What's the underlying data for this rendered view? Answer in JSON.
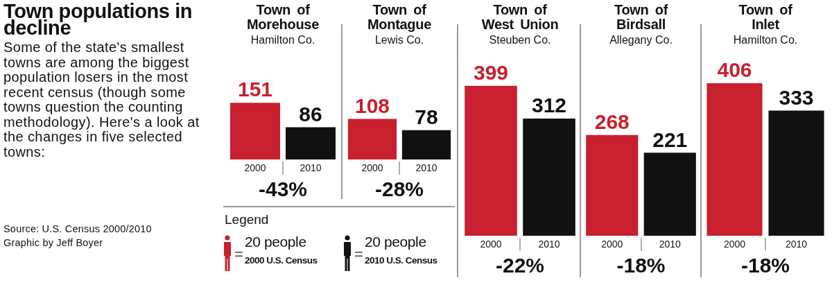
{
  "chart_data": [
    {
      "type": "other",
      "title": "Town populations in decline",
      "subtitle": "Some of the state's smallest towns are among the biggest population losers in the most recent census (though some towns question the counting methodology). Here's a look at the changes in five selected towns:",
      "annotations": [
        "Source: U.S. Census 2000/2010",
        "Graphic by Jeff Boyer"
      ]
    },
    {
      "type": "bar",
      "title": "Town of Morehouse",
      "subtitle": "Hamilton Co.",
      "categories": [
        "2000",
        "2010"
      ],
      "values": [
        151,
        86
      ],
      "colors": [
        "#c8202f",
        "#111111"
      ],
      "data_labels": true,
      "annotations": [
        "-43%"
      ]
    },
    {
      "type": "bar",
      "title": "Town of Montague",
      "subtitle": "Lewis Co.",
      "categories": [
        "2000",
        "2010"
      ],
      "values": [
        108,
        78
      ],
      "colors": [
        "#c8202f",
        "#111111"
      ],
      "data_labels": true,
      "annotations": [
        "-28%"
      ]
    },
    {
      "type": "bar",
      "title": "Town of West Union",
      "subtitle": "Steuben Co.",
      "categories": [
        "2000",
        "2010"
      ],
      "values": [
        399,
        312
      ],
      "colors": [
        "#c8202f",
        "#111111"
      ],
      "data_labels": true,
      "annotations": [
        "-22%"
      ]
    },
    {
      "type": "bar",
      "title": "Town of Birdsall",
      "subtitle": "Allegany Co.",
      "categories": [
        "2000",
        "2010"
      ],
      "values": [
        268,
        221
      ],
      "colors": [
        "#c8202f",
        "#111111"
      ],
      "data_labels": true,
      "annotations": [
        "-18%"
      ]
    },
    {
      "type": "bar",
      "title": "Town of Inlet",
      "subtitle": "Hamilton Co.",
      "categories": [
        "2000",
        "2010"
      ],
      "values": [
        406,
        333
      ],
      "colors": [
        "#c8202f",
        "#111111"
      ],
      "data_labels": true,
      "annotations": [
        "-18%"
      ]
    },
    {
      "type": "other",
      "legend_title": "Legend",
      "annotations": [
        "=",
        "20 people",
        "2000 U.S. Census",
        "=",
        "20 people",
        "2010 U.S. Census"
      ]
    }
  ]
}
